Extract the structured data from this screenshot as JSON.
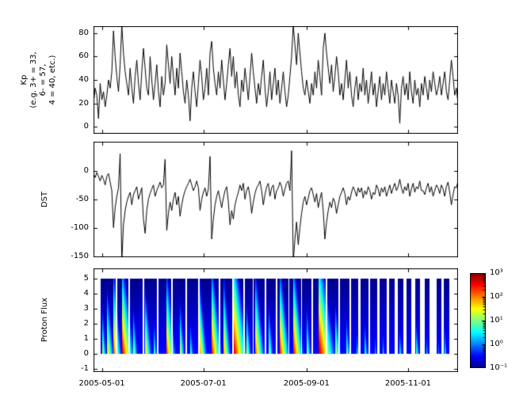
{
  "figure": {
    "background": "#ffffff"
  },
  "x_axis": {
    "tick_labels": [
      "2005-05-01",
      "2005-07-01",
      "2005-09-01",
      "2005-11-01"
    ],
    "tick_days": [
      5,
      66,
      128,
      189
    ],
    "domain_days": [
      0,
      219
    ]
  },
  "chart_data": [
    {
      "id": "kp",
      "type": "line",
      "title": "",
      "xlabel": "",
      "ylabel": "Kp\n(e.g. 3+ = 33,\n6- = 57,\n4 = 40, etc.)",
      "ylim": [
        -6,
        86
      ],
      "yticks": [
        80,
        60,
        40,
        20,
        0
      ],
      "ytick_labels": [
        "80",
        "60",
        "40",
        "20",
        "0"
      ],
      "line_color": "#000000",
      "x_start_day": 0,
      "x_step_days": 1,
      "values": [
        20,
        33,
        27,
        7,
        37,
        23,
        30,
        17,
        27,
        40,
        33,
        47,
        82,
        60,
        43,
        30,
        53,
        87,
        63,
        47,
        37,
        27,
        50,
        33,
        20,
        43,
        57,
        37,
        23,
        47,
        67,
        50,
        33,
        27,
        60,
        40,
        23,
        37,
        53,
        30,
        17,
        43,
        27,
        37,
        70,
        53,
        37,
        60,
        43,
        27,
        50,
        33,
        63,
        47,
        30,
        20,
        40,
        27,
        5,
        33,
        47,
        30,
        17,
        37,
        57,
        43,
        23,
        33,
        50,
        27,
        63,
        73,
        50,
        37,
        27,
        47,
        33,
        57,
        40,
        23,
        37,
        53,
        67,
        43,
        60,
        33,
        47,
        27,
        17,
        40,
        30,
        50,
        37,
        23,
        43,
        63,
        47,
        33,
        20,
        37,
        27,
        43,
        57,
        33,
        17,
        30,
        47,
        23,
        37,
        50,
        27,
        40,
        20,
        33,
        47,
        30,
        17,
        27,
        43,
        60,
        87,
        70,
        53,
        80,
        63,
        47,
        33,
        27,
        40,
        30,
        20,
        37,
        27,
        47,
        33,
        57,
        43,
        27,
        67,
        80,
        63,
        50,
        37,
        53,
        30,
        43,
        60,
        47,
        27,
        37,
        23,
        40,
        57,
        33,
        47,
        27,
        17,
        33,
        43,
        23,
        37,
        30,
        50,
        27,
        40,
        20,
        33,
        47,
        27,
        37,
        17,
        30,
        43,
        23,
        37,
        27,
        47,
        33,
        20,
        40,
        30,
        20,
        37,
        27,
        3,
        33,
        43,
        27,
        37,
        23,
        47,
        30,
        20,
        40,
        27,
        33,
        17,
        37,
        27,
        43,
        33,
        23,
        40,
        30,
        47,
        37,
        27,
        33,
        43,
        27,
        37,
        47,
        30,
        23,
        40,
        57,
        43,
        27,
        33,
        20
      ]
    },
    {
      "id": "dst",
      "type": "line",
      "title": "",
      "xlabel": "",
      "ylabel": "DST",
      "ylim": [
        -152,
        51
      ],
      "yticks": [
        0,
        -50,
        -100,
        -150
      ],
      "ytick_labels": [
        "0",
        "-50",
        "-100",
        "-150"
      ],
      "line_color": "#000000",
      "x_start_day": 0,
      "x_step_days": 1,
      "values": [
        -5,
        -12,
        -3,
        -10,
        -18,
        -8,
        -15,
        -25,
        -10,
        -5,
        -20,
        -35,
        -100,
        -65,
        -45,
        -30,
        30,
        -160,
        -95,
        -70,
        -55,
        -45,
        -38,
        -60,
        -42,
        -35,
        -28,
        -50,
        -40,
        -30,
        -85,
        -110,
        -70,
        -50,
        -40,
        -32,
        -25,
        -45,
        -35,
        -28,
        -20,
        -30,
        -25,
        20,
        -105,
        -75,
        -55,
        -70,
        -50,
        -38,
        -60,
        -45,
        -80,
        -60,
        -45,
        -35,
        -28,
        -22,
        -15,
        -25,
        -35,
        -28,
        -18,
        -30,
        -70,
        -50,
        -38,
        -30,
        -45,
        -32,
        25,
        -120,
        -85,
        -60,
        -45,
        -35,
        -50,
        -65,
        -48,
        -35,
        -28,
        -55,
        -95,
        -70,
        -85,
        -60,
        -48,
        -38,
        -25,
        -35,
        -22,
        -50,
        -35,
        -28,
        -45,
        -75,
        -55,
        -40,
        -30,
        -25,
        -18,
        -35,
        -60,
        -42,
        -28,
        -22,
        -45,
        -30,
        -25,
        -50,
        -35,
        -30,
        -20,
        -28,
        -45,
        -32,
        -22,
        -18,
        -35,
        35,
        -160,
        -120,
        -90,
        -130,
        -100,
        -75,
        -55,
        -45,
        -60,
        -48,
        -35,
        -30,
        -42,
        -55,
        -40,
        -65,
        -50,
        -38,
        -70,
        -120,
        -90,
        -70,
        -55,
        -65,
        -48,
        -55,
        -75,
        -60,
        -45,
        -38,
        -30,
        -40,
        -60,
        -45,
        -52,
        -38,
        -28,
        -35,
        -45,
        -30,
        -38,
        -30,
        -48,
        -35,
        -42,
        -28,
        -35,
        -50,
        -38,
        -42,
        -25,
        -32,
        -45,
        -30,
        -38,
        -28,
        -45,
        -35,
        -25,
        -40,
        -30,
        -22,
        -35,
        -28,
        -15,
        -30,
        -40,
        -28,
        -35,
        -22,
        -45,
        -32,
        -22,
        -38,
        -28,
        -32,
        -18,
        -35,
        -35,
        -42,
        -30,
        -22,
        -38,
        -28,
        -45,
        -35,
        -25,
        -30,
        -40,
        -25,
        -32,
        -45,
        -28,
        -20,
        -38,
        -60,
        -42,
        -28,
        -30,
        -18
      ]
    },
    {
      "id": "proton_flux",
      "type": "heatmap",
      "title": "",
      "xlabel": "",
      "ylabel": "Proton Flux",
      "ylim": [
        -1.2,
        5.7
      ],
      "yticks": [
        5,
        4,
        3,
        2,
        1,
        0,
        -1
      ],
      "ytick_labels": [
        "5",
        "4",
        "3",
        "2",
        "1",
        "0",
        "-1"
      ],
      "energy_range": [
        0,
        5
      ],
      "log10_flux_range": [
        -1,
        3
      ],
      "colormap": "jet",
      "background_logflux": {
        "base": -0.45,
        "slope_per_energy": -0.1
      },
      "data_start_day": 4.5,
      "data_end_day": 214,
      "gaps_days": [
        [
          13.2,
          14.2
        ],
        [
          21,
          21.8
        ],
        [
          29.5,
          30.6
        ],
        [
          38,
          39
        ],
        [
          46.5,
          47.4
        ],
        [
          55,
          56.2
        ],
        [
          63,
          63.8
        ],
        [
          75.2,
          76.2
        ],
        [
          83.5,
          84.3
        ],
        [
          90,
          90.8
        ],
        [
          95.5,
          96.4
        ],
        [
          103,
          103.8
        ],
        [
          109.5,
          110.6
        ],
        [
          117,
          117.8
        ],
        [
          124.5,
          125.3
        ],
        [
          131,
          131.8
        ],
        [
          139.5,
          140.4
        ],
        [
          147,
          148
        ],
        [
          154,
          154.8
        ],
        [
          159,
          160.5
        ],
        [
          165,
          166.2
        ],
        [
          170.5,
          172
        ],
        [
          176,
          177.5
        ],
        [
          181,
          183
        ],
        [
          186,
          188
        ],
        [
          191,
          193.5
        ],
        [
          196,
          199
        ],
        [
          202,
          206
        ],
        [
          209,
          210.5
        ],
        [
          214,
          219
        ]
      ],
      "events": [
        {
          "start_day": 5,
          "peak_log10_flux": 1.6,
          "decay_days": 4,
          "energy_slope": 0.6
        },
        {
          "start_day": 8,
          "peak_log10_flux": 2.0,
          "decay_days": 5,
          "energy_slope": 0.55
        },
        {
          "start_day": 12,
          "peak_log10_flux": 2.4,
          "decay_days": 5,
          "energy_slope": 0.5
        },
        {
          "start_day": 17,
          "peak_log10_flux": 2.8,
          "decay_days": 7,
          "energy_slope": 0.5
        },
        {
          "start_day": 24,
          "peak_log10_flux": 1.4,
          "decay_days": 4,
          "energy_slope": 0.65
        },
        {
          "start_day": 31,
          "peak_log10_flux": 1.9,
          "decay_days": 5,
          "energy_slope": 0.55
        },
        {
          "start_day": 36,
          "peak_log10_flux": 1.2,
          "decay_days": 4,
          "energy_slope": 0.7
        },
        {
          "start_day": 44,
          "peak_log10_flux": 2.3,
          "decay_days": 6,
          "energy_slope": 0.5
        },
        {
          "start_day": 52,
          "peak_log10_flux": 1.6,
          "decay_days": 4,
          "energy_slope": 0.6
        },
        {
          "start_day": 58,
          "peak_log10_flux": 1.1,
          "decay_days": 4,
          "energy_slope": 0.7
        },
        {
          "start_day": 64,
          "peak_log10_flux": 2.0,
          "decay_days": 5,
          "energy_slope": 0.55
        },
        {
          "start_day": 71,
          "peak_log10_flux": 2.6,
          "decay_days": 6,
          "energy_slope": 0.5
        },
        {
          "start_day": 78,
          "peak_log10_flux": 2.2,
          "decay_days": 5,
          "energy_slope": 0.5
        },
        {
          "start_day": 84,
          "peak_log10_flux": 2.9,
          "decay_days": 8,
          "energy_slope": 0.45
        },
        {
          "start_day": 92,
          "peak_log10_flux": 1.5,
          "decay_days": 4,
          "energy_slope": 0.6
        },
        {
          "start_day": 97,
          "peak_log10_flux": 2.4,
          "decay_days": 6,
          "energy_slope": 0.5
        },
        {
          "start_day": 105,
          "peak_log10_flux": 1.7,
          "decay_days": 4,
          "energy_slope": 0.6
        },
        {
          "start_day": 112,
          "peak_log10_flux": 2.5,
          "decay_days": 6,
          "energy_slope": 0.5
        },
        {
          "start_day": 120,
          "peak_log10_flux": 2.7,
          "decay_days": 6,
          "energy_slope": 0.5
        },
        {
          "start_day": 128,
          "peak_log10_flux": 1.5,
          "decay_days": 4,
          "energy_slope": 0.6
        },
        {
          "start_day": 135,
          "peak_log10_flux": 3.0,
          "decay_days": 9,
          "energy_slope": 0.45
        },
        {
          "start_day": 145,
          "peak_log10_flux": 1.7,
          "decay_days": 5,
          "energy_slope": 0.6
        },
        {
          "start_day": 152,
          "peak_log10_flux": 1.2,
          "decay_days": 4,
          "energy_slope": 0.7
        },
        {
          "start_day": 158,
          "peak_log10_flux": 0.8,
          "decay_days": 3,
          "energy_slope": 0.8
        },
        {
          "start_day": 163,
          "peak_log10_flux": 0.9,
          "decay_days": 4,
          "energy_slope": 0.7
        },
        {
          "start_day": 169,
          "peak_log10_flux": 0.6,
          "decay_days": 3,
          "energy_slope": 0.8
        },
        {
          "start_day": 174,
          "peak_log10_flux": 0.5,
          "decay_days": 3,
          "energy_slope": 0.8
        },
        {
          "start_day": 184,
          "peak_log10_flux": 0.7,
          "decay_days": 4,
          "energy_slope": 0.8
        },
        {
          "start_day": 194,
          "peak_log10_flux": 0.9,
          "decay_days": 4,
          "energy_slope": 0.7
        },
        {
          "start_day": 200,
          "peak_log10_flux": 0.6,
          "decay_days": 3,
          "energy_slope": 0.8
        },
        {
          "start_day": 207,
          "peak_log10_flux": 0.5,
          "decay_days": 3,
          "energy_slope": 0.8
        },
        {
          "start_day": 211,
          "peak_log10_flux": 0.8,
          "decay_days": 3,
          "energy_slope": 0.7
        }
      ],
      "colorbar": {
        "tick_labels": [
          "10³",
          "10²",
          "10¹",
          "10⁰",
          "10⁻¹"
        ],
        "tick_exponents": [
          3,
          2,
          1,
          0,
          -1
        ]
      }
    }
  ]
}
